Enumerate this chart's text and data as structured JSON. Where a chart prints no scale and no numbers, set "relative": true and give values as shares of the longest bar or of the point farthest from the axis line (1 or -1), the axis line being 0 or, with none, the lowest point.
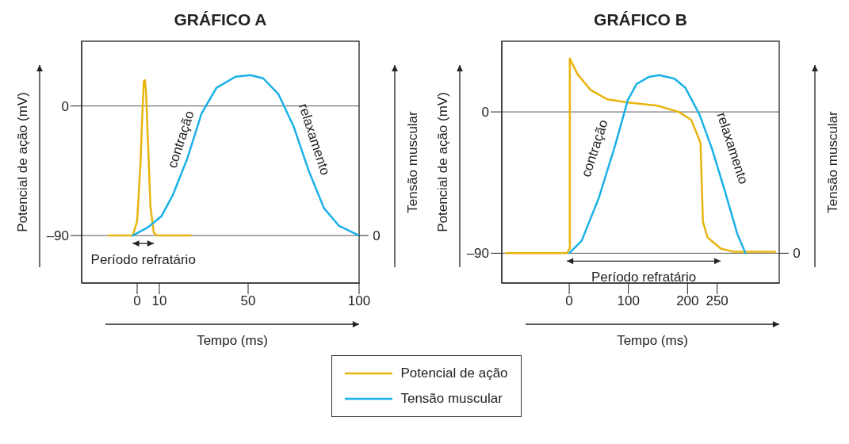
{
  "chart_data": [
    {
      "type": "line",
      "title": "GRÁFICO A",
      "xlabel": "Tempo (ms)",
      "ylabel": "Potencial de ação (mV)",
      "xlim": [
        -25,
        100
      ],
      "xticks": [
        0,
        10,
        50,
        100
      ],
      "ylim": [
        -123,
        45
      ],
      "yticks": [
        {
          "value": -90,
          "label": "–90"
        },
        0
      ],
      "legend": "bottom",
      "series": [
        {
          "name": "Potencial de ação",
          "color": "#e8b40f",
          "x": [
            -13,
            -2,
            0,
            1.5,
            2.5,
            3,
            3.5,
            4,
            5,
            6,
            7.5,
            9,
            24
          ],
          "values": [
            -90,
            -90,
            -80,
            -40,
            0,
            17,
            18,
            10,
            -30,
            -70,
            -88,
            -90,
            -90
          ]
        }
      ],
      "ref_lines": [
        {
          "axis": "y",
          "value": 0,
          "color": "#555555"
        },
        {
          "axis": "y",
          "value": -90,
          "color": "#555555"
        }
      ],
      "annotations": [
        "Período refratário"
      ]
    },
    {
      "type": "line",
      "y2label": "Tensão muscular",
      "relative": true,
      "xlim": [
        -25,
        100
      ],
      "xticks": [
        0,
        10,
        50,
        100
      ],
      "tick_labels": false,
      "legend": "bottom",
      "series": [
        {
          "name": "Tensão muscular",
          "color": "#1ab0e8",
          "axis": "y2",
          "x": [
            -2,
            4.75,
            10.9,
            16,
            22.6,
            29,
            35.7,
            44.3,
            51,
            56.8,
            63.7,
            70.5,
            77.4,
            84.2,
            91,
            100
          ],
          "values": [
            0,
            0.05,
            0.12,
            0.25,
            0.48,
            0.76,
            0.92,
            0.99,
            1,
            0.98,
            0.88,
            0.68,
            0.4,
            0.17,
            0.06,
            0
          ]
        }
      ],
      "annotations": [
        "0",
        "contração",
        "relaxamento"
      ]
    },
    {
      "type": "line",
      "title": "GRÁFICO B",
      "xlabel": "Tempo (ms)",
      "ylabel": "Potencial de ação (mV)",
      "xlim": [
        -114,
        355
      ],
      "xticks": [
        0,
        100,
        200,
        250
      ],
      "ylim": [
        -109,
        45
      ],
      "yticks": [
        {
          "value": -90,
          "label": "–90"
        },
        0
      ],
      "series": [
        {
          "color": "#e8b40f",
          "x": [
            -107,
            -4,
            1,
            1,
            14,
            36,
            64,
            99,
            149,
            185,
            206,
            217,
            222,
            226,
            234,
            256,
            277,
            348
          ],
          "values": [
            -90,
            -90,
            -87,
            34,
            24,
            14,
            8,
            6,
            4,
            0,
            -5,
            -15,
            -20,
            -70,
            -80,
            -87,
            -89,
            -89
          ]
        }
      ],
      "ref_lines": [
        {
          "axis": "y",
          "value": 0,
          "color": "#555555"
        },
        {
          "axis": "y",
          "value": -90,
          "color": "#555555"
        }
      ],
      "annotations": [
        "Período refratário"
      ]
    },
    {
      "type": "line",
      "y2label": "Tensão muscular",
      "relative": true,
      "xlim": [
        -114,
        355
      ],
      "xticks": [
        0,
        100,
        200,
        250
      ],
      "tick_labels": false,
      "series": [
        {
          "color": "#1ab0e8",
          "axis": "y2",
          "x": [
            0,
            21,
            50,
            78,
            99,
            114,
            135,
            152,
            178,
            196,
            220,
            241,
            263,
            284,
            298
          ],
          "values": [
            0,
            0.07,
            0.31,
            0.61,
            0.86,
            0.95,
            0.99,
            1,
            0.98,
            0.93,
            0.78,
            0.59,
            0.35,
            0.11,
            0
          ]
        }
      ],
      "annotations": [
        "0",
        "contração",
        "relaxamento"
      ]
    }
  ]
}
